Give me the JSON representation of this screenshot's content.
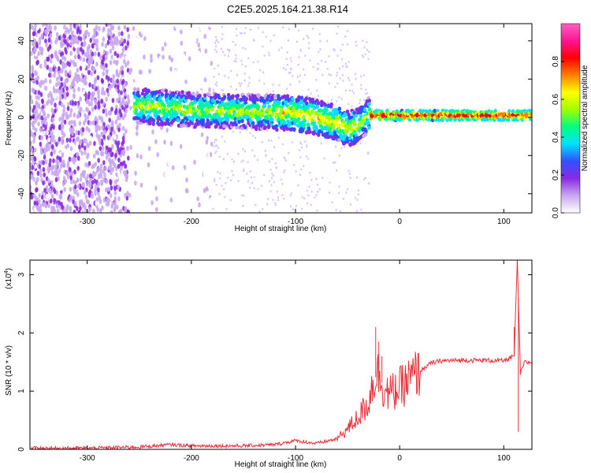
{
  "figure": {
    "title": "C2E5.2025.164.21.38.R14"
  },
  "chart_data": [
    {
      "type": "heatmap",
      "xlabel": "Height of straight line (km)",
      "ylabel": "Frequency (Hz)",
      "xlim": [
        -355,
        127
      ],
      "ylim": [
        -50,
        49
      ],
      "xticks": [
        -300,
        -200,
        -100,
        0,
        100
      ],
      "yticks": [
        -40,
        -20,
        0,
        20,
        40
      ],
      "colorbar": {
        "label": "Normalized spectral amplitude",
        "range": [
          0,
          1
        ],
        "ticks": [
          0.0,
          0.2,
          0.4,
          0.6,
          0.8
        ],
        "colors": [
          "#ffffff",
          "#c9a8f0",
          "#8a2be2",
          "#3050ff",
          "#00e0ff",
          "#00ff80",
          "#a0ff00",
          "#ffff00",
          "#ff8000",
          "#ff0000",
          "#ff1493",
          "#ff60c0"
        ]
      },
      "ridge": [
        {
          "x": -250,
          "y": 6
        },
        {
          "x": -200,
          "y": 4
        },
        {
          "x": -150,
          "y": 3
        },
        {
          "x": -100,
          "y": 2
        },
        {
          "x": -80,
          "y": 0
        },
        {
          "x": -60,
          "y": -3
        },
        {
          "x": -50,
          "y": -6
        },
        {
          "x": -40,
          "y": -4
        },
        {
          "x": -30,
          "y": 1
        },
        {
          "x": -10,
          "y": 1
        },
        {
          "x": 0,
          "y": 1
        },
        {
          "x": 50,
          "y": 1
        },
        {
          "x": 100,
          "y": 1
        },
        {
          "x": 127,
          "y": 1
        }
      ]
    },
    {
      "type": "line",
      "xlabel": "Height of straight line (km)",
      "ylabel": "SNR (10 * v/v)",
      "scale_label": "(x10",
      "scale_exp": "4",
      "scale_close": ")",
      "xlim": [
        -355,
        127
      ],
      "ylim": [
        0,
        3.25
      ],
      "xticks": [
        -300,
        -200,
        -100,
        0,
        100
      ],
      "yticks": [
        0,
        1,
        2,
        3
      ],
      "series": [
        {
          "color": "#e8303a",
          "points": [
            {
              "x": -355,
              "y": 0.02
            },
            {
              "x": -300,
              "y": 0.02
            },
            {
              "x": -250,
              "y": 0.04
            },
            {
              "x": -220,
              "y": 0.08
            },
            {
              "x": -200,
              "y": 0.06
            },
            {
              "x": -150,
              "y": 0.06
            },
            {
              "x": -120,
              "y": 0.08
            },
            {
              "x": -100,
              "y": 0.15
            },
            {
              "x": -80,
              "y": 0.1
            },
            {
              "x": -60,
              "y": 0.18
            },
            {
              "x": -50,
              "y": 0.35
            },
            {
              "x": -40,
              "y": 0.55
            },
            {
              "x": -30,
              "y": 0.8
            },
            {
              "x": -25,
              "y": 1.2
            },
            {
              "x": -20,
              "y": 1.3
            },
            {
              "x": -15,
              "y": 1.05
            },
            {
              "x": -10,
              "y": 0.95
            },
            {
              "x": 0,
              "y": 1.05
            },
            {
              "x": 10,
              "y": 1.2
            },
            {
              "x": 20,
              "y": 1.35
            },
            {
              "x": 30,
              "y": 1.48
            },
            {
              "x": 40,
              "y": 1.52
            },
            {
              "x": 60,
              "y": 1.53
            },
            {
              "x": 80,
              "y": 1.53
            },
            {
              "x": 100,
              "y": 1.52
            },
            {
              "x": 110,
              "y": 1.6
            },
            {
              "x": 113,
              "y": 3.25
            },
            {
              "x": 116,
              "y": 1.3
            },
            {
              "x": 120,
              "y": 1.5
            },
            {
              "x": 127,
              "y": 1.49
            }
          ],
          "spikes": [
            {
              "x": -23,
              "y": 2.1
            },
            {
              "x": -20,
              "y": 1.85
            },
            {
              "x": -17,
              "y": 1.6
            },
            {
              "x": 110,
              "y": 2.1
            },
            {
              "x": 114,
              "y": 0.3
            }
          ]
        }
      ]
    }
  ]
}
